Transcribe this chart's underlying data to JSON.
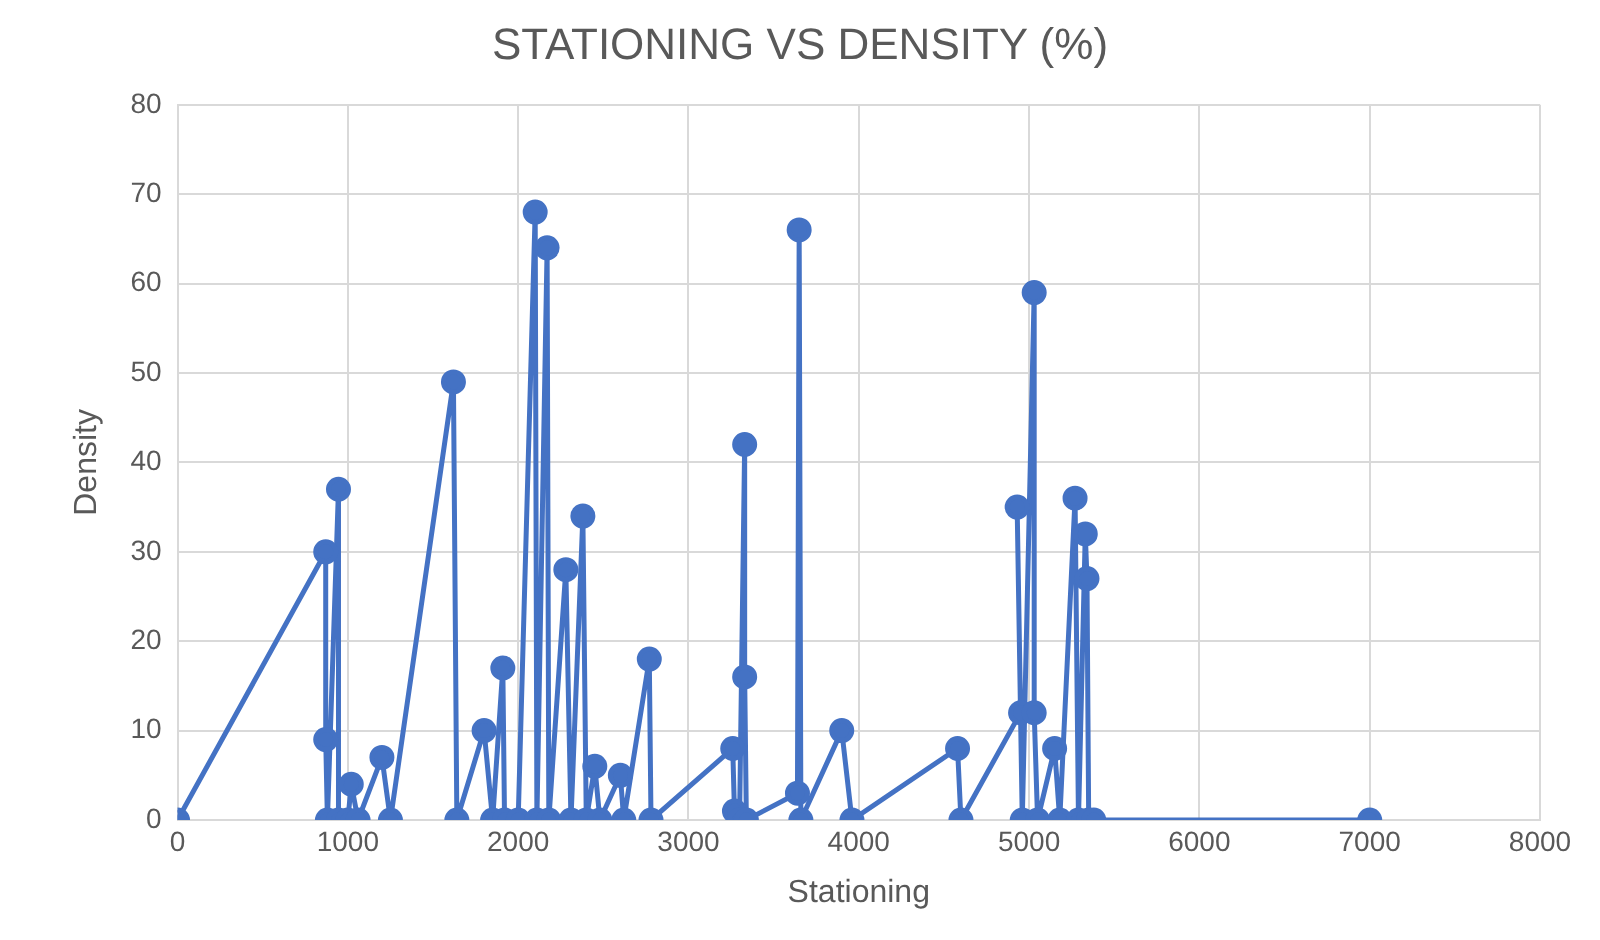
{
  "chart_data": {
    "type": "line",
    "title": "STATIONING VS DENSITY (%)",
    "xlabel": "Stationing",
    "ylabel": "Density",
    "x": [
      0,
      870,
      870,
      880,
      945,
      945,
      1000,
      1020,
      1060,
      1200,
      1250,
      1620,
      1640,
      1800,
      1850,
      1910,
      1920,
      2000,
      2100,
      2110,
      2170,
      2180,
      2280,
      2310,
      2380,
      2400,
      2450,
      2480,
      2600,
      2620,
      2770,
      2780,
      3260,
      3270,
      3300,
      3330,
      3330,
      3340,
      3640,
      3650,
      3660,
      3900,
      3960,
      4580,
      4600,
      4950,
      4930,
      4960,
      5030,
      5030,
      5050,
      5150,
      5180,
      5270,
      5290,
      5330,
      5340,
      5350,
      5380,
      7000
    ],
    "series": [
      {
        "color": "#4472c4",
        "values": [
          0,
          30,
          9,
          0,
          37,
          0,
          0,
          4,
          0,
          7,
          0,
          49,
          0,
          10,
          0,
          17,
          0,
          0,
          68,
          0,
          64,
          0,
          28,
          0,
          34,
          0,
          6,
          0,
          5,
          0,
          18,
          0,
          8,
          1,
          0,
          42,
          16,
          0,
          3,
          66,
          0,
          10,
          0,
          8,
          0,
          12,
          35,
          0,
          59,
          12,
          0,
          8,
          0,
          36,
          0,
          32,
          27,
          0,
          0,
          0
        ]
      }
    ],
    "xlim": [
      0,
      8000
    ],
    "xticks": [
      0,
      1000,
      2000,
      3000,
      4000,
      5000,
      6000,
      7000,
      8000
    ],
    "ylim": [
      0,
      80
    ],
    "yticks": [
      0,
      10,
      20,
      30,
      40,
      50,
      60,
      70,
      80
    ],
    "grid": true,
    "legend": false,
    "marker": "circle",
    "line_style": "solid"
  }
}
